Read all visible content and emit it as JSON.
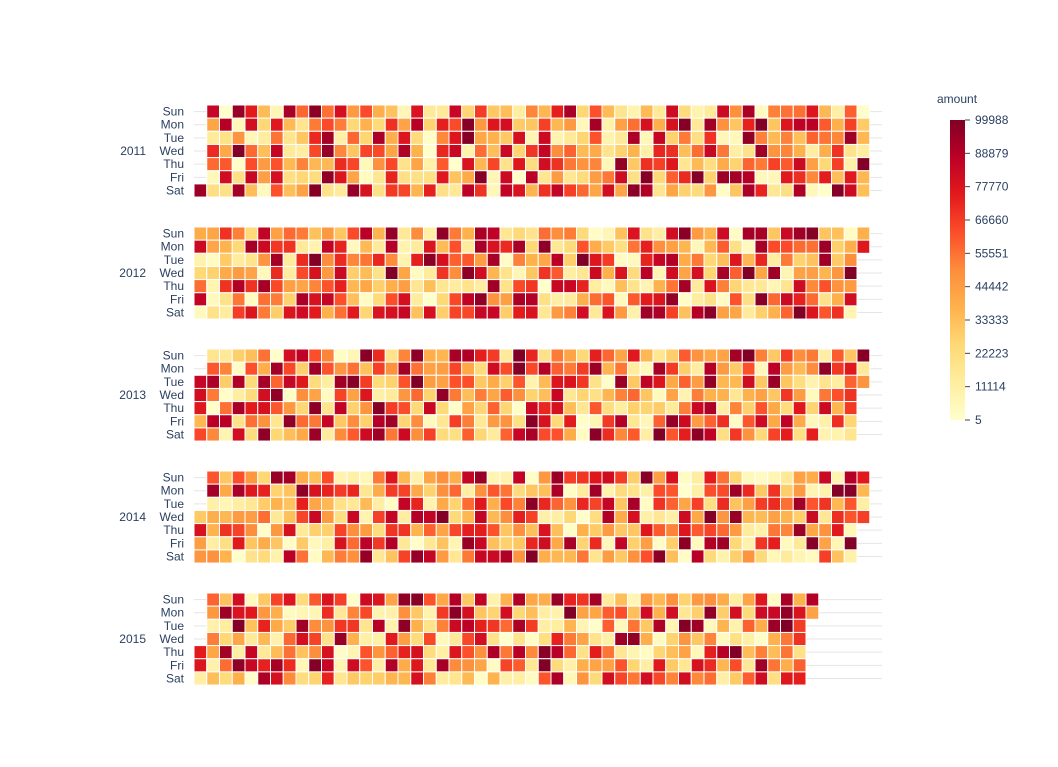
{
  "chart_data": {
    "type": "heatmap",
    "title": "",
    "colorbar": {
      "title": "amount",
      "min": 5,
      "max": 99988,
      "tick_values": [
        5,
        11114,
        22223,
        33333,
        44442,
        55551,
        66660,
        77770,
        88879,
        99988
      ],
      "tick_labels": [
        "5",
        "11114",
        "22223",
        "33333",
        "44442",
        "55551",
        "66660",
        "77770",
        "88879",
        "99988"
      ],
      "colorscale": [
        "#ffffcc",
        "#ffeda0",
        "#fed976",
        "#feb24c",
        "#fd8d3c",
        "#fc4e2a",
        "#e31a1c",
        "#bd0026",
        "#800026"
      ]
    },
    "weekday_labels": [
      "Sun",
      "Mon",
      "Tue",
      "Wed",
      "Thu",
      "Fri",
      "Sat"
    ],
    "years": [
      {
        "label": "2011",
        "start_weekday": 6,
        "days": 365,
        "seed": 11
      },
      {
        "label": "2012",
        "start_weekday": 0,
        "days": 366,
        "seed": 12
      },
      {
        "label": "2013",
        "start_weekday": 2,
        "days": 365,
        "seed": 13
      },
      {
        "label": "2014",
        "start_weekday": 3,
        "days": 365,
        "seed": 14
      },
      {
        "label": "2015",
        "start_weekday": 4,
        "days": 334,
        "seed": 15
      }
    ],
    "note_values": "daily amount values, one per day, drawn as colored cells (weeks as columns, weekdays as rows)"
  }
}
